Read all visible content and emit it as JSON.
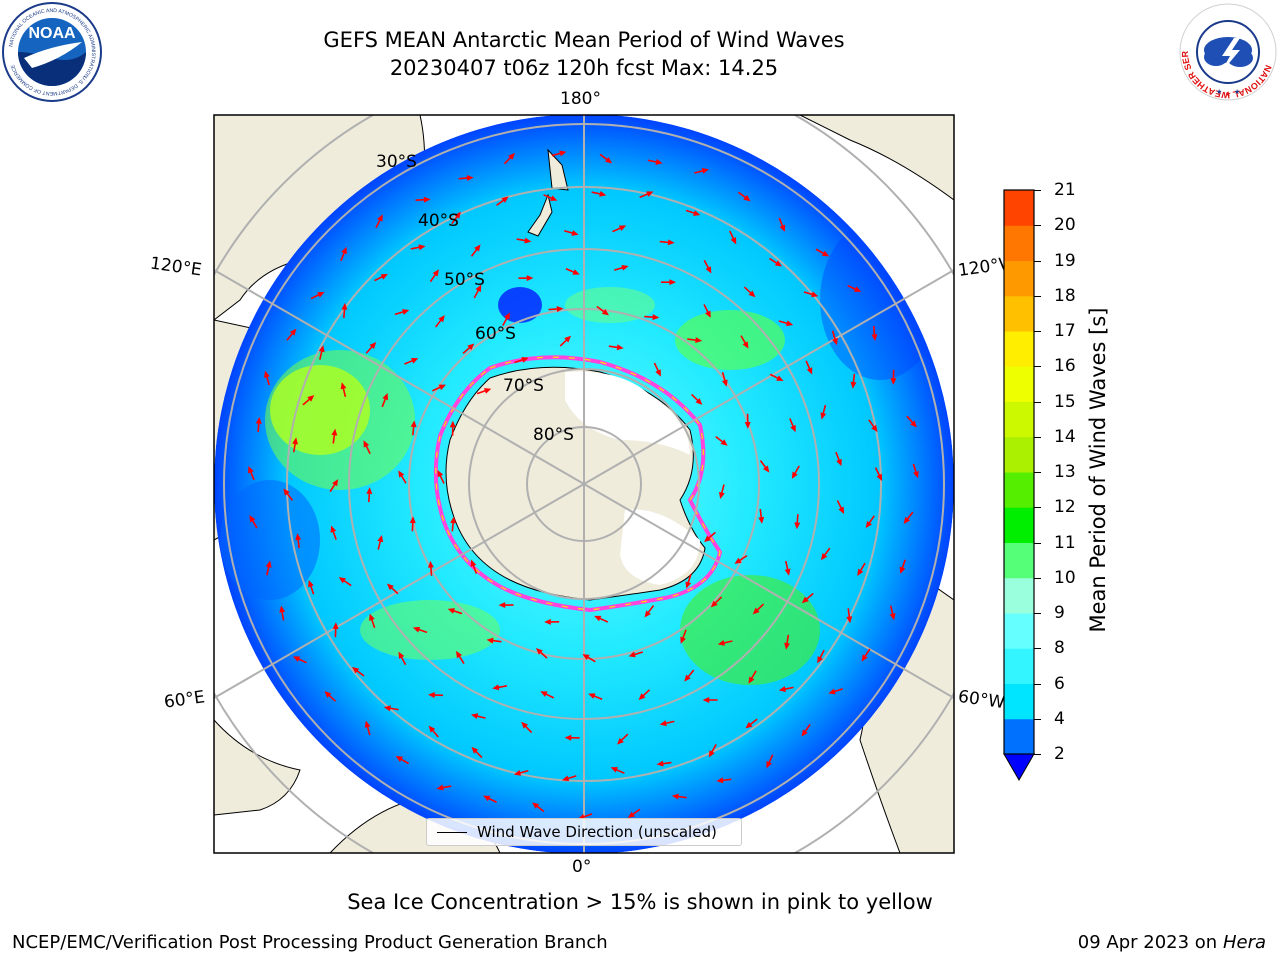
{
  "header": {
    "title_line1": "GEFS MEAN Antarctic Mean Period of Wind Waves",
    "title_line2": "20230407 t06z 120h fcst   Max: 14.25"
  },
  "logos": {
    "left": {
      "text": "NOAA",
      "ring_top": "NATIONAL OCEANIC AND ATMOSPHERIC ADMINISTRATION",
      "ring_bottom": "U.S. DEPARTMENT OF COMMERCE"
    },
    "right": {
      "ring": "NATIONAL WEATHER SERVICE"
    }
  },
  "map": {
    "projection": "south-polar-stereographic",
    "longitude_labels": {
      "top": "180°",
      "bottom": "0°",
      "upper_left": "120°E",
      "upper_right": "120°W",
      "lower_left": "60°E",
      "lower_right": "60°W"
    },
    "latitude_labels": [
      "30°S",
      "40°S",
      "50°S",
      "60°S",
      "70°S",
      "80°S"
    ],
    "legend_label": "Wind Wave Direction (unscaled)",
    "colors": {
      "land": "#efecdc",
      "ice_sheet": "#ffffff",
      "grid": "#b0b0b0",
      "arrow": "#ff0000",
      "sea_ice_edge": [
        "#ff44dd",
        "#ffdd00"
      ]
    }
  },
  "colorbar": {
    "label": "Mean Period of Wind Waves [s]",
    "ticks": [
      "21",
      "20",
      "19",
      "18",
      "17",
      "16",
      "15",
      "14",
      "13",
      "12",
      "11",
      "10",
      "9",
      "8",
      "6",
      "4",
      "2"
    ],
    "colors": [
      "#0000ff",
      "#0070ff",
      "#00e5ff",
      "#33f5ff",
      "#66ffff",
      "#99ffdd",
      "#55ff77",
      "#00ee00",
      "#55ee00",
      "#aaf000",
      "#ccf800",
      "#eeff00",
      "#ffee00",
      "#ffc000",
      "#ff9900",
      "#ff7700",
      "#ff4400",
      "#ff0000"
    ]
  },
  "footer": {
    "note": "Sea Ice Concentration > 15% is shown in pink to yellow",
    "left": "NCEP/EMC/Verification Post Processing Product Generation Branch",
    "right_date": "09 Apr 2023 on ",
    "right_machine": "Hera"
  }
}
